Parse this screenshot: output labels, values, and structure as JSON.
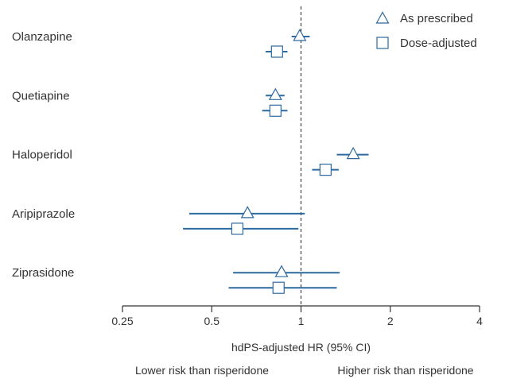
{
  "chart_data": {
    "type": "forest",
    "xlabel": "hdPS-adjusted HR (95% CI)",
    "x_scale": "log2",
    "xlim": [
      0.25,
      4
    ],
    "xticks": [
      0.25,
      0.5,
      1,
      2,
      4
    ],
    "xtick_labels": [
      "0.25",
      "0.5",
      "1",
      "2",
      "4"
    ],
    "reference_line": 1,
    "annotation_left": "Lower risk than risperidone",
    "annotation_right": "Higher risk than risperidone",
    "categories": [
      "Olanzapine",
      "Quetiapine",
      "Haloperidol",
      "Aripiprazole",
      "Ziprasidone"
    ],
    "series": [
      {
        "name": "As prescribed",
        "marker": "triangle",
        "points": [
          {
            "estimate": 0.99,
            "ci": [
              0.93,
              1.07
            ]
          },
          {
            "estimate": 0.82,
            "ci": [
              0.76,
              0.88
            ]
          },
          {
            "estimate": 1.5,
            "ci": [
              1.32,
              1.69
            ]
          },
          {
            "estimate": 0.66,
            "ci": [
              0.42,
              1.03
            ]
          },
          {
            "estimate": 0.86,
            "ci": [
              0.59,
              1.35
            ]
          }
        ]
      },
      {
        "name": "Dose-adjusted",
        "marker": "square",
        "points": [
          {
            "estimate": 0.83,
            "ci": [
              0.76,
              0.9
            ]
          },
          {
            "estimate": 0.82,
            "ci": [
              0.74,
              0.9
            ]
          },
          {
            "estimate": 1.21,
            "ci": [
              1.09,
              1.34
            ]
          },
          {
            "estimate": 0.61,
            "ci": [
              0.4,
              0.98
            ]
          },
          {
            "estimate": 0.84,
            "ci": [
              0.57,
              1.32
            ]
          }
        ]
      }
    ],
    "legend_position": "top-right",
    "colors": {
      "marks": "#2c6aa0",
      "text": "#333333",
      "axis": "#333333",
      "reference": "#444444"
    }
  }
}
